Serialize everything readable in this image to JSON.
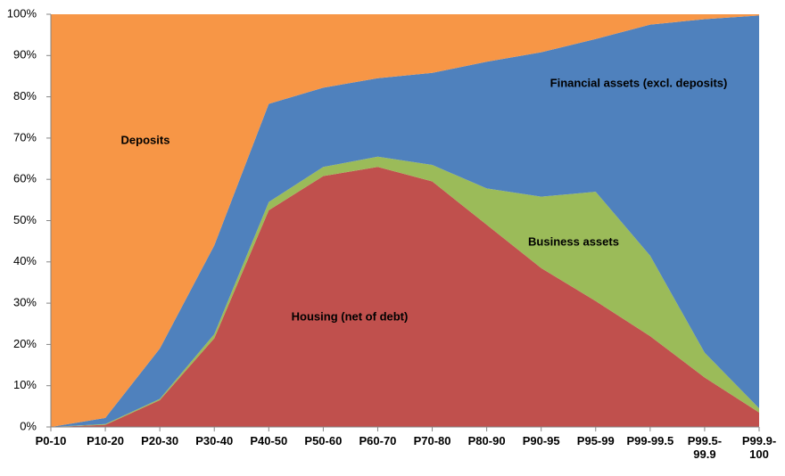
{
  "chart_data": {
    "type": "stacked_area",
    "categories": [
      "P0-10",
      "P10-20",
      "P20-30",
      "P30-40",
      "P40-50",
      "P50-60",
      "P60-70",
      "P70-80",
      "P80-90",
      "P90-95",
      "P95-99",
      "P99-99.5",
      "P99.5-99.9",
      "P99.9-100"
    ],
    "series": [
      {
        "name": "Housing (net of debt)",
        "color": "#c0504d",
        "values": [
          0,
          0.5,
          6.5,
          21.5,
          52.5,
          60.8,
          63,
          59.5,
          49,
          38.5,
          30.5,
          22,
          12,
          3.5
        ]
      },
      {
        "name": "Business assets",
        "color": "#9bbb59",
        "values": [
          0,
          0.2,
          0.3,
          1,
          2,
          2.2,
          2.5,
          4,
          8.8,
          17.3,
          26.5,
          19.5,
          6,
          1
        ]
      },
      {
        "name": "Financial assets  (excl. deposits)",
        "color": "#4f81bd",
        "values": [
          0,
          1.5,
          12.2,
          21.5,
          23.8,
          19.2,
          19,
          22.3,
          30.7,
          35,
          37,
          56,
          80.8,
          95.2
        ]
      },
      {
        "name": "Deposits",
        "color": "#f79646",
        "values": [
          100,
          97.8,
          81,
          56,
          21.7,
          17.8,
          15.5,
          14.2,
          11.5,
          9.2,
          6,
          2.5,
          1.2,
          0.3
        ]
      }
    ],
    "ylim": [
      0,
      100
    ],
    "yticks": [
      {
        "value": 0,
        "label": "0%"
      },
      {
        "value": 10,
        "label": "10%"
      },
      {
        "value": 20,
        "label": "20%"
      },
      {
        "value": 30,
        "label": "30%"
      },
      {
        "value": 40,
        "label": "40%"
      },
      {
        "value": 50,
        "label": "50%"
      },
      {
        "value": 60,
        "label": "60%"
      },
      {
        "value": 70,
        "label": "70%"
      },
      {
        "value": 80,
        "label": "80%"
      },
      {
        "value": 90,
        "label": "90%"
      },
      {
        "value": 100,
        "label": "100%"
      }
    ],
    "grid": false
  }
}
